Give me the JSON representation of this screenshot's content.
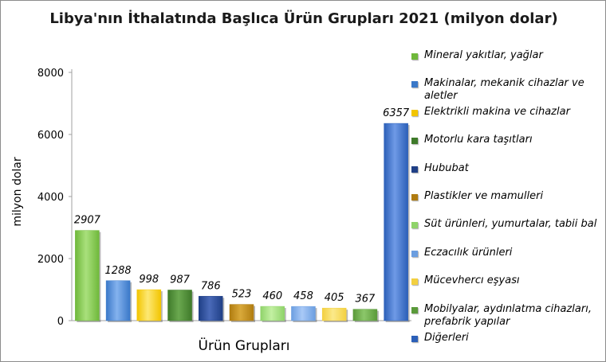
{
  "chart_data": {
    "type": "bar",
    "title": "Libya'nın İthalatında Başlıca Ürün Grupları 2021 (milyon dolar)",
    "xlabel": "Ürün Grupları",
    "ylabel": "milyon dolar",
    "ylim": [
      0,
      8000
    ],
    "yticks": [
      0,
      2000,
      4000,
      6000,
      8000
    ],
    "grid": false,
    "legend_position": "right",
    "categories": [
      "Mineral yakıtlar, yağlar",
      "Makinalar, mekanik cihazlar ve aletler",
      "Elektrikli makina ve cihazlar",
      "Motorlu kara taşıtları",
      "Hububat",
      "Plastikler ve mamulleri",
      "Süt ürünleri, yumurtalar, tabii bal",
      "Eczacılık ürünleri",
      "Mücevhercı eşyası",
      "Mobilyalar, aydınlatma cihazları, prefabrik yapılar",
      "Diğerleri"
    ],
    "values": [
      2907,
      1288,
      998,
      987,
      786,
      523,
      460,
      458,
      405,
      367,
      6357
    ],
    "colors": [
      "#6fb83a",
      "#3a78c8",
      "#f2c500",
      "#3f7a2a",
      "#1f3f86",
      "#b07c10",
      "#8fd36a",
      "#6b9ee0",
      "#f3d040",
      "#5a9a3a",
      "#2b5fb8"
    ],
    "highlights": [
      "#a9e07c",
      "#84b2ee",
      "#fde873",
      "#6aa84f",
      "#4a6ab8",
      "#d9a93a",
      "#c3f0a2",
      "#a9c9f7",
      "#fbe98a",
      "#8cc76a",
      "#6f9ae6"
    ]
  }
}
